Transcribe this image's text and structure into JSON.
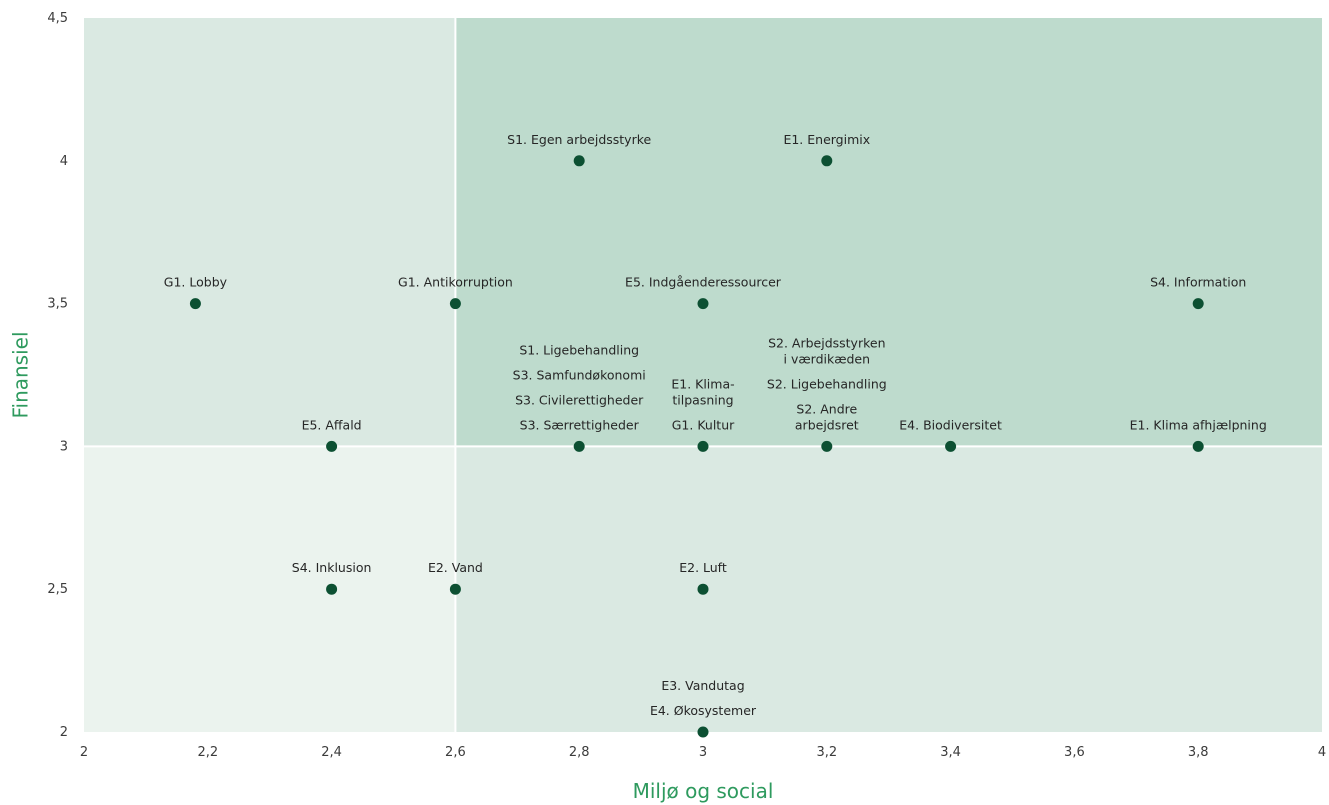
{
  "chart_data": {
    "type": "scatter",
    "xlabel": "Miljø og social",
    "ylabel": "Finansiel",
    "xlim": [
      2,
      4
    ],
    "ylim": [
      2,
      4.5
    ],
    "xticks": [
      {
        "value": 2,
        "label": "2"
      },
      {
        "value": 2.2,
        "label": "2,2"
      },
      {
        "value": 2.4,
        "label": "2,4"
      },
      {
        "value": 2.6,
        "label": "2,6"
      },
      {
        "value": 2.8,
        "label": "2,8"
      },
      {
        "value": 3,
        "label": "3"
      },
      {
        "value": 3.2,
        "label": "3,2"
      },
      {
        "value": 3.4,
        "label": "3,4"
      },
      {
        "value": 3.6,
        "label": "3,6"
      },
      {
        "value": 3.8,
        "label": "3,8"
      },
      {
        "value": 4,
        "label": "4"
      }
    ],
    "yticks": [
      {
        "value": 2,
        "label": "2"
      },
      {
        "value": 2.5,
        "label": "2,5"
      },
      {
        "value": 3,
        "label": "3"
      },
      {
        "value": 3.5,
        "label": "3,5"
      },
      {
        "value": 4,
        "label": "4"
      },
      {
        "value": 4.5,
        "label": "4,5"
      }
    ],
    "quadrant_split": {
      "x": 2.6,
      "y": 3
    },
    "colors": {
      "quadrant_top_left": "#dae9e2",
      "quadrant_top_right": "#bedbcd",
      "quadrant_bottom_left": "#ebf3ee",
      "quadrant_bottom_right": "#dae9e2",
      "point": "#0c5032",
      "axis_label": "#2e9a5e",
      "divider": "#ffffff"
    },
    "points": [
      {
        "x": 2.8,
        "y": 4,
        "labels": [
          "S1. Egen arbejdsstyrke"
        ]
      },
      {
        "x": 3.2,
        "y": 4,
        "labels": [
          "E1. Energimix"
        ]
      },
      {
        "x": 2.18,
        "y": 3.5,
        "labels": [
          "G1. Lobby"
        ]
      },
      {
        "x": 2.6,
        "y": 3.5,
        "labels": [
          "G1. Antikorruption"
        ]
      },
      {
        "x": 3.0,
        "y": 3.5,
        "labels": [
          "E5. Indgåenderessourcer"
        ]
      },
      {
        "x": 3.8,
        "y": 3.5,
        "labels": [
          "S4. Information"
        ]
      },
      {
        "x": 2.4,
        "y": 3,
        "labels": [
          "E5. Affald"
        ]
      },
      {
        "x": 2.8,
        "y": 3,
        "labels": [
          "S3. Særrettigheder",
          "S3. Civilerettigheder",
          "S3. Samfundøkonomi",
          "S1. Ligebehandling"
        ]
      },
      {
        "x": 3.0,
        "y": 3,
        "labels": [
          "G1. Kultur",
          "E1. Klima-\ntilpasning"
        ]
      },
      {
        "x": 3.2,
        "y": 3,
        "labels": [
          "S2. Andre\narbejdsret",
          "S2. Ligebehandling",
          "S2. Arbejdsstyrken\ni værdikæden"
        ]
      },
      {
        "x": 3.4,
        "y": 3,
        "labels": [
          "E4. Biodiversitet"
        ]
      },
      {
        "x": 3.8,
        "y": 3,
        "labels": [
          "E1. Klima afhjælpning"
        ]
      },
      {
        "x": 2.4,
        "y": 2.5,
        "labels": [
          "S4. Inklusion"
        ]
      },
      {
        "x": 2.6,
        "y": 2.5,
        "labels": [
          "E2. Vand"
        ]
      },
      {
        "x": 3.0,
        "y": 2.5,
        "labels": [
          "E2. Luft"
        ]
      },
      {
        "x": 3.0,
        "y": 2,
        "labels": [
          "E4. Økosystemer",
          "E3. Vandutag"
        ]
      }
    ]
  }
}
